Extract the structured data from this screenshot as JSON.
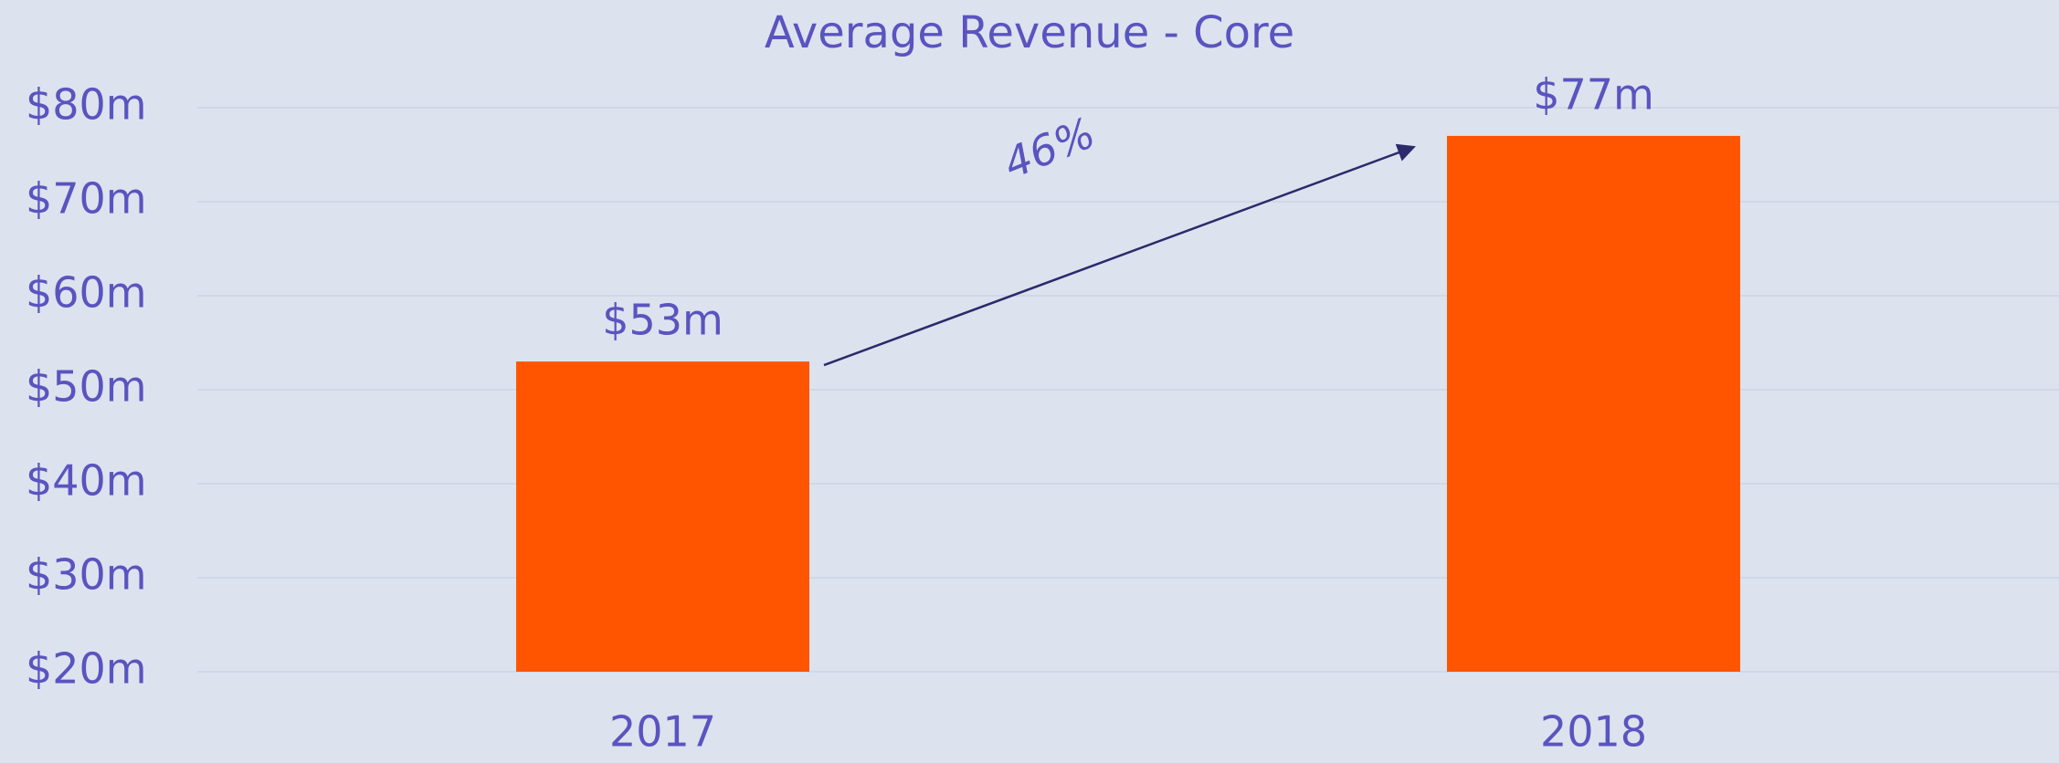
{
  "chart_data": {
    "type": "bar",
    "title": "Average Revenue - Core",
    "categories": [
      "2017",
      "2018"
    ],
    "values": [
      53,
      77
    ],
    "value_labels": [
      "$53m",
      "$77m"
    ],
    "color": "#ff5500",
    "ylim": [
      20,
      80
    ],
    "yticks": [
      {
        "value": 20,
        "label": "$20m"
      },
      {
        "value": 30,
        "label": "$30m"
      },
      {
        "value": 40,
        "label": "$40m"
      },
      {
        "value": 50,
        "label": "$50m"
      },
      {
        "value": 60,
        "label": "$60m"
      },
      {
        "value": 70,
        "label": "$70m"
      },
      {
        "value": 80,
        "label": "$80m"
      }
    ],
    "grid": true,
    "annotation": "46%"
  }
}
